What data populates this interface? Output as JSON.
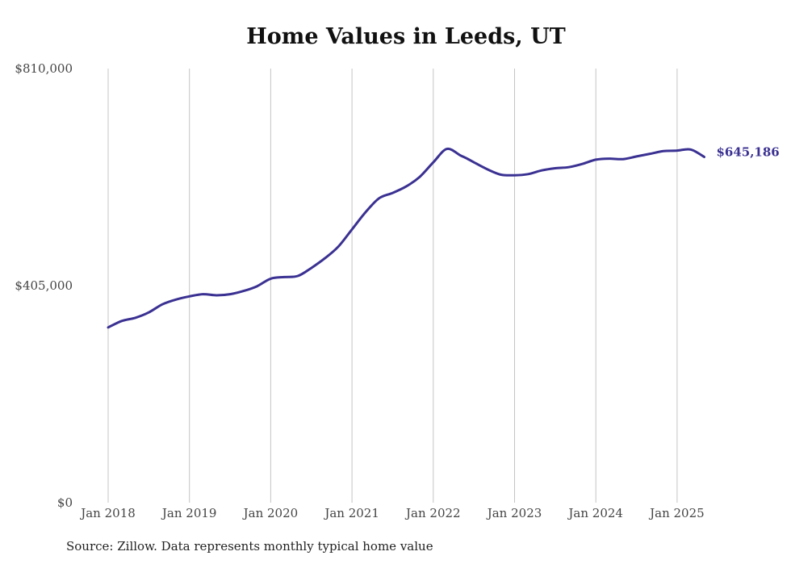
{
  "chart_data": {
    "type": "line",
    "title": "Home Values in Leeds, UT",
    "ylim": [
      0,
      810000
    ],
    "y_ticks": [
      "$810,000",
      "$405,000",
      "$0"
    ],
    "y_tick_values": [
      810000,
      405000,
      0
    ],
    "x_ticks": [
      "Jan 2018",
      "Jan 2019",
      "Jan 2020",
      "Jan 2021",
      "Jan 2022",
      "Jan 2023",
      "Jan 2024",
      "Jan 2025"
    ],
    "grid": "vertical",
    "line_color": "#3a3192",
    "end_label": "$645,186",
    "series": [
      {
        "x": [
          "2018-01",
          "2018-03",
          "2018-05",
          "2018-07",
          "2018-09",
          "2018-11",
          "2019-01",
          "2019-03",
          "2019-05",
          "2019-07",
          "2019-09",
          "2019-11",
          "2020-01",
          "2020-03",
          "2020-05",
          "2020-07",
          "2020-09",
          "2020-11",
          "2021-01",
          "2021-03",
          "2021-05",
          "2021-07",
          "2021-09",
          "2021-11",
          "2022-01",
          "2022-03",
          "2022-05",
          "2022-06",
          "2022-07",
          "2022-09",
          "2022-11",
          "2023-01",
          "2023-03",
          "2023-05",
          "2023-07",
          "2023-09",
          "2023-11",
          "2024-01",
          "2024-03",
          "2024-05",
          "2024-07",
          "2024-09",
          "2024-11",
          "2025-01",
          "2025-03",
          "2025-05"
        ],
        "values": [
          327000,
          339000,
          345000,
          355000,
          370000,
          379000,
          385000,
          389000,
          387000,
          389000,
          395000,
          404000,
          418000,
          421000,
          423000,
          438000,
          456000,
          478000,
          510000,
          542000,
          568000,
          578000,
          590000,
          608000,
          635000,
          660000,
          648000,
          642000,
          635000,
          622000,
          612000,
          611000,
          613000,
          620000,
          624000,
          626000,
          632000,
          640000,
          642000,
          641000,
          646000,
          651000,
          656000,
          657000,
          659000,
          645186
        ]
      }
    ]
  },
  "source_note": "Source: Zillow. Data represents monthly typical home value"
}
